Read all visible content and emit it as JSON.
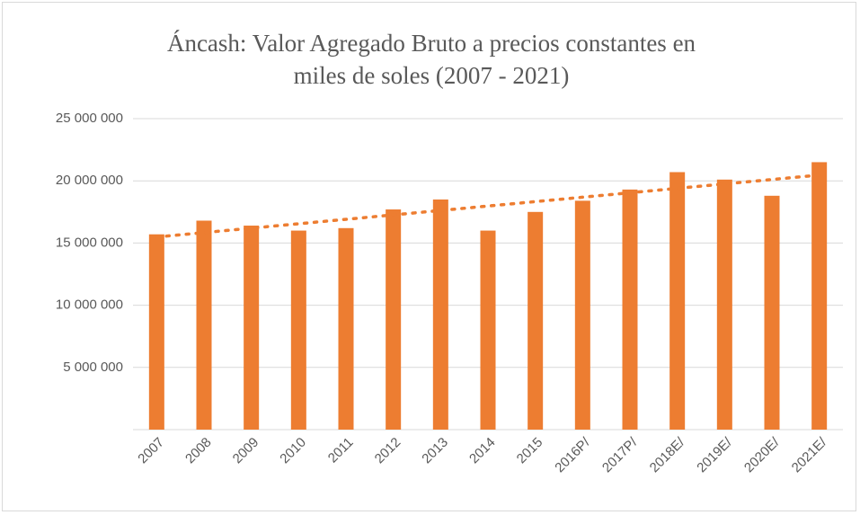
{
  "chart_data": {
    "type": "bar",
    "title": "Áncash: Valor Agregado Bruto a precios constantes en miles de soles (2007 - 2021)",
    "categories": [
      "2007",
      "2008",
      "2009",
      "2010",
      "2011",
      "2012",
      "2013",
      "2014",
      "2015",
      "2016P/",
      "2017P/",
      "2018E/",
      "2019E/",
      "2020E/",
      "2021E/"
    ],
    "values": [
      15700000,
      16800000,
      16400000,
      16000000,
      16200000,
      17700000,
      18500000,
      16000000,
      17500000,
      18400000,
      19300000,
      20700000,
      20100000,
      18800000,
      21500000
    ],
    "color": "#ed7d31",
    "trendline": true,
    "ylim": [
      0,
      25000000
    ],
    "yticks": [
      {
        "value": 5000000,
        "label": "5 000 000"
      },
      {
        "value": 10000000,
        "label": "10 000 000"
      },
      {
        "value": 15000000,
        "label": "15 000 000"
      },
      {
        "value": 20000000,
        "label": "20 000 000"
      },
      {
        "value": 25000000,
        "label": "25 000 000"
      }
    ],
    "grid": true
  }
}
